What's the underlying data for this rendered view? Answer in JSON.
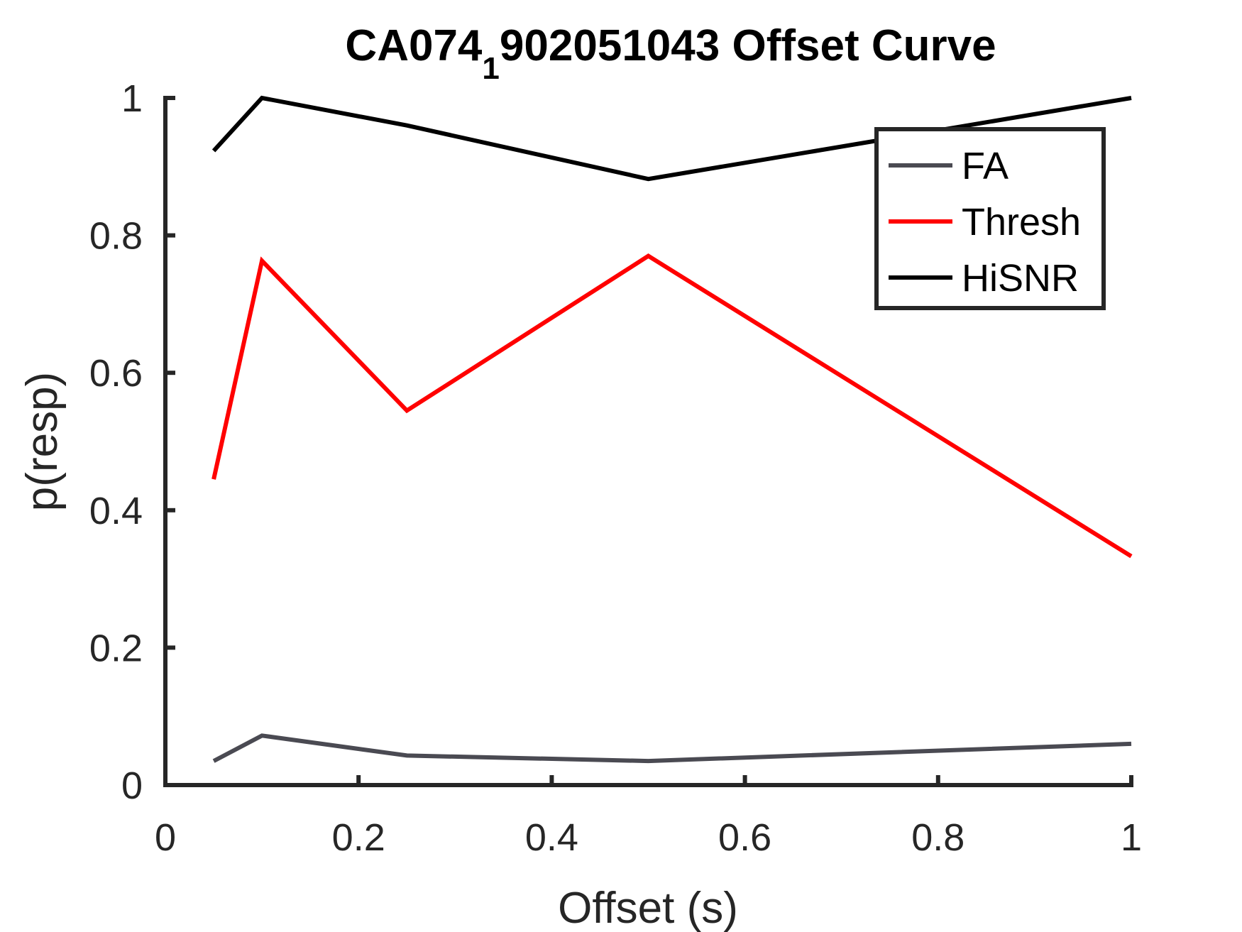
{
  "chart_data": {
    "type": "line",
    "title": "CA074",
    "title_subscript": "1",
    "title_rest": "902051043 Offset Curve",
    "xlabel": "Offset (s)",
    "ylabel": "p(resp)",
    "xlim": [
      0,
      1
    ],
    "ylim": [
      0,
      1
    ],
    "xticks": [
      0,
      0.2,
      0.4,
      0.6,
      0.8,
      1
    ],
    "xtick_labels": [
      "0",
      "0.2",
      "0.4",
      "0.6",
      "0.8",
      "1"
    ],
    "yticks": [
      0,
      0.2,
      0.4,
      0.6,
      0.8,
      1
    ],
    "ytick_labels": [
      "0",
      "0.2",
      "0.4",
      "0.6",
      "0.8",
      "1"
    ],
    "grid": false,
    "legend_position": "top-right",
    "x": [
      0.05,
      0.1,
      0.25,
      0.5,
      1.0
    ],
    "series": [
      {
        "name": "FA",
        "color": "#4a4a52",
        "values": [
          0.035,
          0.072,
          0.043,
          0.035,
          0.06
        ]
      },
      {
        "name": "Thresh",
        "color": "#ff0000",
        "values": [
          0.445,
          0.763,
          0.545,
          0.77,
          0.333
        ]
      },
      {
        "name": "HiSNR",
        "color": "#000000",
        "values": [
          0.923,
          1.0,
          0.96,
          0.882,
          1.0
        ]
      }
    ]
  }
}
